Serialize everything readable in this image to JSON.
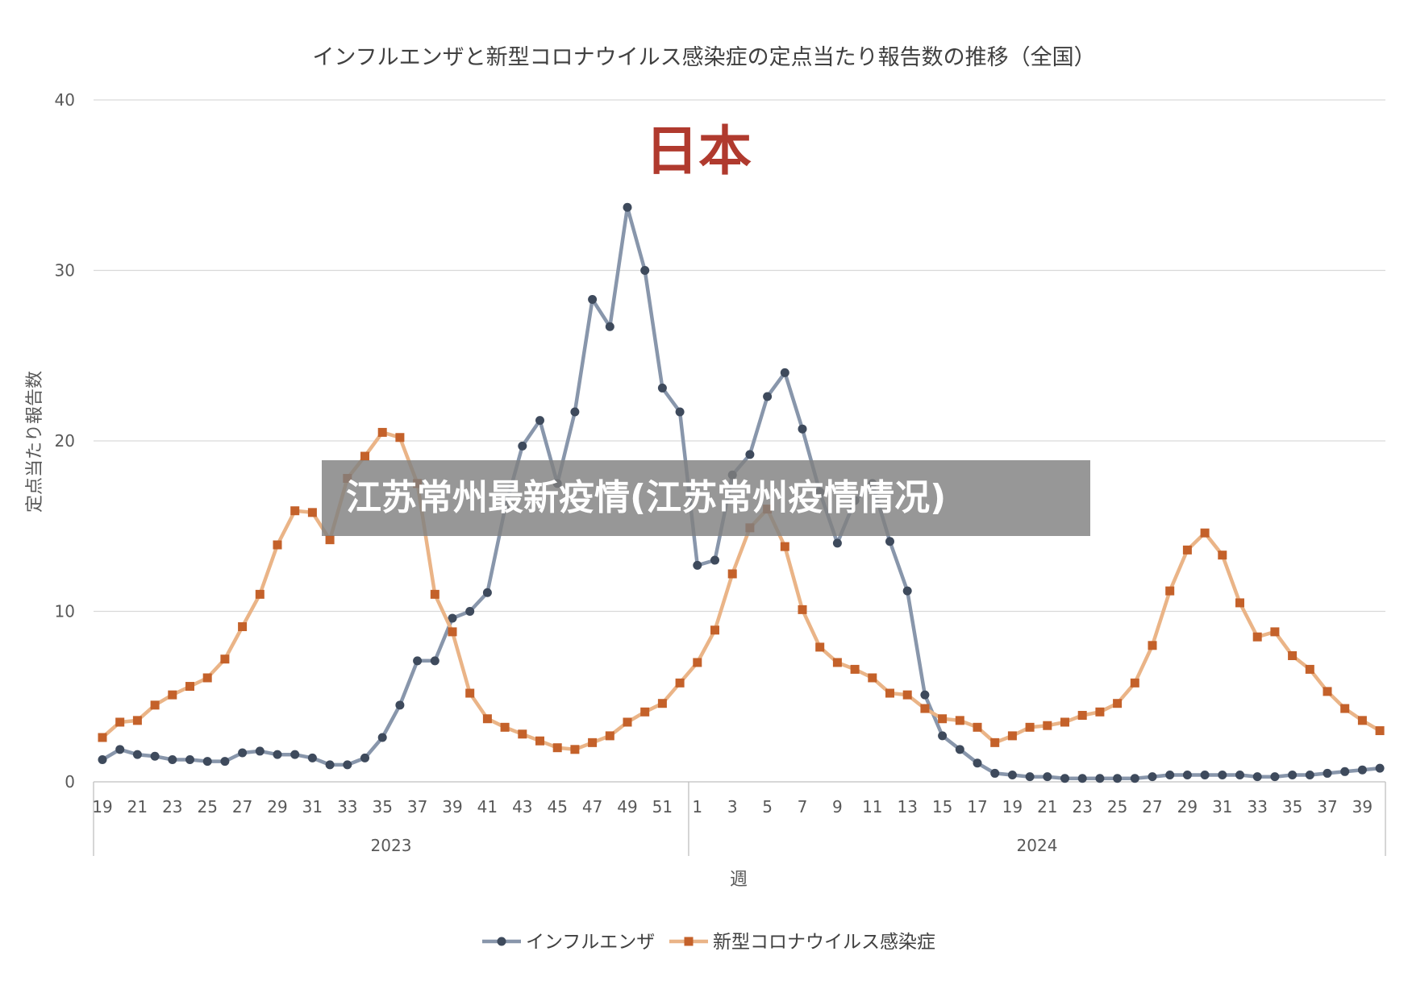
{
  "overlay_banner": "江苏常州最新疫情(江苏常州疫情情况)",
  "chart_data": {
    "type": "line",
    "title": "インフルエンザと新型コロナウイルス感染症の定点当たり報告数の推移（全国）",
    "annotation": "日本",
    "xlabel": "週",
    "ylabel": "定点当たり報告数",
    "ylim": [
      0,
      40
    ],
    "yticks": [
      0,
      10,
      20,
      30,
      40
    ],
    "grid": true,
    "legend_position": "bottom",
    "colors": {
      "influenza": "#8896ab",
      "influenza_marker": "#3e4a5c",
      "covid": "#eab487",
      "covid_marker": "#c4612a",
      "annotation": "#b03a2e"
    },
    "year_groups": [
      {
        "label": "2023",
        "start_index": 0,
        "end_index": 33
      },
      {
        "label": "2024",
        "start_index": 34,
        "end_index": 73
      }
    ],
    "x": [
      "19",
      "20",
      "21",
      "22",
      "23",
      "24",
      "25",
      "26",
      "27",
      "28",
      "29",
      "30",
      "31",
      "32",
      "33",
      "34",
      "35",
      "36",
      "37",
      "38",
      "39",
      "40",
      "41",
      "42",
      "43",
      "44",
      "45",
      "46",
      "47",
      "48",
      "49",
      "50",
      "51",
      "52",
      "1",
      "2",
      "3",
      "4",
      "5",
      "6",
      "7",
      "8",
      "9",
      "10",
      "11",
      "12",
      "13",
      "14",
      "15",
      "16",
      "17",
      "18",
      "19",
      "20",
      "21",
      "22",
      "23",
      "24",
      "25",
      "26",
      "27",
      "28",
      "29",
      "30",
      "31",
      "32",
      "33",
      "34",
      "35",
      "36",
      "37",
      "38",
      "39",
      "40"
    ],
    "xticks_shown": [
      "19",
      "21",
      "23",
      "25",
      "27",
      "29",
      "31",
      "33",
      "35",
      "37",
      "39",
      "41",
      "43",
      "45",
      "47",
      "49",
      "51",
      "1",
      "3",
      "5",
      "7",
      "9",
      "11",
      "13",
      "15",
      "17",
      "19",
      "21",
      "23",
      "25",
      "27",
      "29",
      "31",
      "33",
      "35",
      "37",
      "39"
    ],
    "series": [
      {
        "name": "インフルエンザ",
        "key": "influenza",
        "marker": "circle",
        "values": [
          1.3,
          1.9,
          1.6,
          1.5,
          1.3,
          1.3,
          1.2,
          1.2,
          1.7,
          1.8,
          1.6,
          1.6,
          1.4,
          1.0,
          1.0,
          1.4,
          2.6,
          4.5,
          7.1,
          7.1,
          9.6,
          10.0,
          11.1,
          16.0,
          19.7,
          21.2,
          17.5,
          21.7,
          28.3,
          26.7,
          33.7,
          30.0,
          23.1,
          21.7,
          12.7,
          13.0,
          18.0,
          19.2,
          22.6,
          24.0,
          20.7,
          17.0,
          14.0,
          16.5,
          17.5,
          14.1,
          11.2,
          5.1,
          2.7,
          1.9,
          1.1,
          0.5,
          0.4,
          0.3,
          0.3,
          0.2,
          0.2,
          0.2,
          0.2,
          0.2,
          0.3,
          0.4,
          0.4,
          0.4,
          0.4,
          0.4,
          0.3,
          0.3,
          0.4,
          0.4,
          0.5,
          0.6,
          0.7,
          0.8
        ]
      },
      {
        "name": "新型コロナウイルス感染症",
        "key": "covid",
        "marker": "square",
        "values": [
          2.6,
          3.5,
          3.6,
          4.5,
          5.1,
          5.6,
          6.1,
          7.2,
          9.1,
          11.0,
          13.9,
          15.9,
          15.8,
          14.2,
          17.8,
          19.1,
          20.5,
          20.2,
          17.5,
          11.0,
          8.8,
          5.2,
          3.7,
          3.2,
          2.8,
          2.4,
          2.0,
          1.9,
          2.3,
          2.7,
          3.5,
          4.1,
          4.6,
          5.8,
          7.0,
          8.9,
          12.2,
          14.9,
          16.0,
          13.8,
          10.1,
          7.9,
          7.0,
          6.6,
          6.1,
          5.2,
          5.1,
          4.3,
          3.7,
          3.6,
          3.2,
          2.3,
          2.7,
          3.2,
          3.3,
          3.5,
          3.9,
          4.1,
          4.6,
          5.8,
          8.0,
          11.2,
          13.6,
          14.6,
          13.3,
          10.5,
          8.5,
          8.8,
          7.4,
          6.6,
          5.3,
          4.3,
          3.6,
          3.0
        ]
      }
    ]
  }
}
